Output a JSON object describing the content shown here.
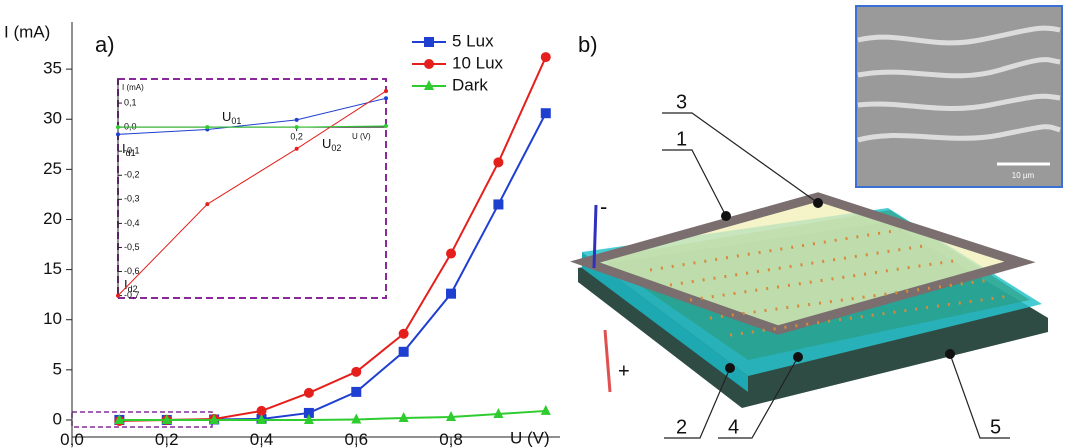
{
  "chart_data": [
    {
      "type": "line",
      "panel_label": "a)",
      "y_label": "I (mA)",
      "x_label": "U (V)",
      "x": [
        0.1,
        0.2,
        0.3,
        0.4,
        0.5,
        0.6,
        0.7,
        0.8,
        0.9,
        1.0
      ],
      "series": [
        {
          "name": "5 Lux",
          "color": "#1f3fd0",
          "marker": "square",
          "values": [
            0,
            0,
            0.05,
            0.1,
            0.7,
            2.8,
            6.8,
            12.6,
            21.5,
            30.6
          ]
        },
        {
          "name": "10 Lux",
          "color": "#e5201c",
          "marker": "circle",
          "values": [
            -0.1,
            0,
            0.1,
            0.9,
            2.7,
            4.8,
            8.6,
            16.6,
            25.7,
            36.2
          ]
        },
        {
          "name": "Dark",
          "color": "#2ecc2e",
          "marker": "triangle",
          "values": [
            0,
            0,
            0,
            0,
            0,
            0.05,
            0.2,
            0.3,
            0.6,
            0.9
          ]
        }
      ],
      "xlim": [
        0,
        1.03
      ],
      "ylim": [
        -1.7,
        39.7
      ],
      "xticks": [
        {
          "value": 0,
          "label": "0,0"
        },
        {
          "value": 0.2,
          "label": "0,2"
        },
        {
          "value": 0.4,
          "label": "0,4"
        },
        {
          "value": 0.6,
          "label": "0,6"
        },
        {
          "value": 0.8,
          "label": "0,8"
        }
      ],
      "yticks": [
        0,
        5,
        10,
        15,
        20,
        25,
        30,
        35
      ],
      "legend": "upper right"
    },
    {
      "type": "line",
      "y_label": "I (mA)",
      "x_label": "U (V)",
      "x": [
        0,
        0.1,
        0.2,
        0.3
      ],
      "series": [
        {
          "name": "5 Lux",
          "color": "#1f3fd0",
          "values": [
            -0.03,
            -0.01,
            0.03,
            0.12
          ]
        },
        {
          "name": "10 Lux",
          "color": "#e5201c",
          "values": [
            -0.7,
            -0.32,
            -0.09,
            0.15
          ]
        },
        {
          "name": "Dark",
          "color": "#2ecc2e",
          "values": [
            0,
            0,
            0,
            0.005
          ]
        }
      ],
      "xlim": [
        0,
        0.3
      ],
      "ylim": [
        -0.71,
        0.2
      ],
      "xticks": [
        {
          "value": 0.2,
          "label": "0,2"
        }
      ],
      "yticks": [
        {
          "value": 0.1,
          "label": "0,1"
        },
        {
          "value": 0,
          "label": "0,0"
        },
        {
          "value": -0.1,
          "label": "-0,1"
        },
        {
          "value": -0.2,
          "label": "-0,2"
        },
        {
          "value": -0.3,
          "label": "-0,3"
        },
        {
          "value": -0.4,
          "label": "-0,4"
        },
        {
          "value": -0.5,
          "label": "-0,5"
        },
        {
          "value": -0.6,
          "label": "-0,6"
        },
        {
          "value": -0.7,
          "label": "-0,7"
        }
      ],
      "annotations": [
        {
          "text": "U",
          "sub": "01"
        },
        {
          "text": "U",
          "sub": "02"
        },
        {
          "text": "I",
          "sub": "d1"
        },
        {
          "text": "I",
          "sub": "d2"
        }
      ]
    }
  ],
  "diagram": {
    "panel_label": "b)",
    "labels": [
      "1",
      "2",
      "3",
      "4",
      "5"
    ],
    "minus": "-",
    "plus": "+",
    "scale_bar": "10 µm"
  }
}
